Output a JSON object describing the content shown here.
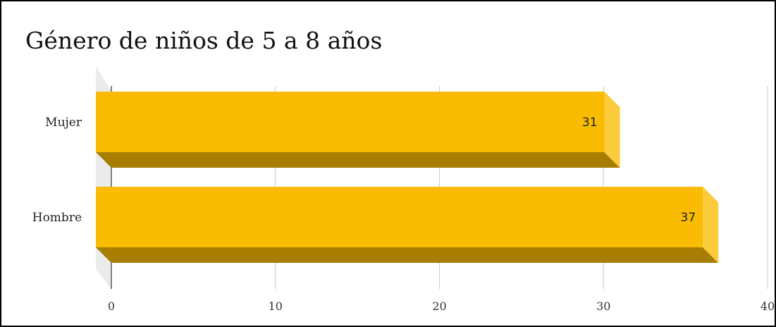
{
  "chart_data": {
    "type": "bar",
    "orientation": "horizontal",
    "title": "Género de niños de 5 a 8 años",
    "categories": [
      "Mujer",
      "Hombre"
    ],
    "values": [
      31,
      37
    ],
    "data_labels": [
      "31",
      "37"
    ],
    "xlim": [
      0,
      40
    ],
    "xticks": [
      "0",
      "10",
      "20",
      "30",
      "40"
    ],
    "grid": "vertical",
    "three_d": true,
    "legend": "none"
  },
  "colors": {
    "bar_face": "#F9BC02",
    "bar_bottom": "#A77D02",
    "bar_end": "#FCCB3C",
    "floor": "#EBEBEB",
    "grid": "#CCCCCC",
    "axis": "#333333"
  }
}
